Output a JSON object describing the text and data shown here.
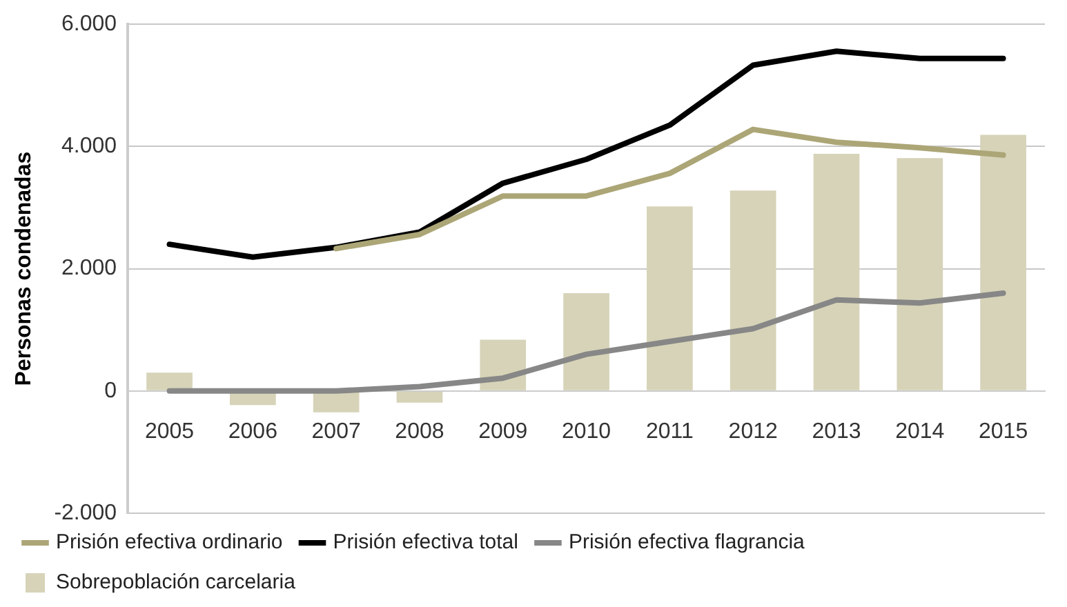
{
  "chart_data": {
    "type": "bar",
    "ylabel": "Personas condenadas",
    "categories": [
      "2005",
      "2006",
      "2007",
      "2008",
      "2009",
      "2010",
      "2011",
      "2012",
      "2013",
      "2014",
      "2015"
    ],
    "series": [
      {
        "name": "Prisión efectiva ordinario",
        "type": "line",
        "color": "#aca677",
        "values": [
          null,
          null,
          2330,
          2560,
          3190,
          3190,
          3560,
          4280,
          4070,
          3980,
          3860
        ]
      },
      {
        "name": "Prisión efectiva total",
        "type": "line",
        "color": "#000000",
        "values": [
          2400,
          2190,
          2350,
          2600,
          3400,
          3790,
          4350,
          5330,
          5560,
          5440,
          5440
        ]
      },
      {
        "name": "Prisión efectiva flagrancia",
        "type": "line",
        "color": "#878787",
        "values": [
          0,
          0,
          0,
          70,
          210,
          600,
          810,
          1020,
          1490,
          1440,
          1600
        ]
      },
      {
        "name": "Sobrepoblación carcelaria",
        "color": "#d6d3b8",
        "values": [
          300,
          -230,
          -350,
          -190,
          840,
          1600,
          3020,
          3280,
          3880,
          3810,
          4190
        ]
      }
    ],
    "ylim": [
      -2000,
      6000
    ],
    "yticks": [
      {
        "value": -2000,
        "label": "-2.000"
      },
      {
        "value": 0,
        "label": "0"
      },
      {
        "value": 2000,
        "label": "2.000"
      },
      {
        "value": 4000,
        "label": "4.000"
      },
      {
        "value": 6000,
        "label": "6.000"
      }
    ],
    "grid": "y",
    "legend": "bottom",
    "marker": "none",
    "line_style": "solid"
  }
}
